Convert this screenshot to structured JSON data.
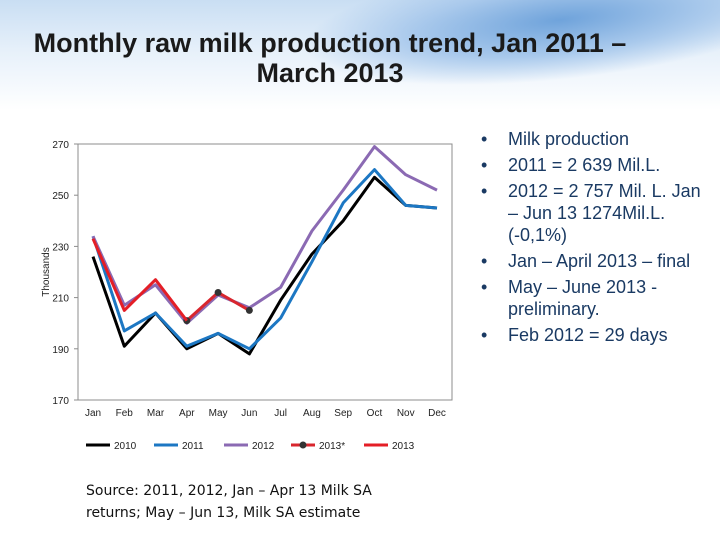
{
  "title": "Monthly raw milk production trend, Jan 2011 – March 2013",
  "bullet_marker": "•",
  "bullets": [
    "Milk production",
    "2011 = 2 639 Mil.L.",
    "2012 = 2  757 Mil. L. Jan – Jun 13 1274Mil.L.   (-0,1%)",
    "Jan – April 2013 – final",
    "May – June  2013  - preliminary.",
    "Feb 2012 = 29 days"
  ],
  "source_note": "Source: 2011, 2012, Jan – Apr 13 Milk SA returns; May – Jun 13, Milk SA estimate",
  "chart_data": {
    "type": "line",
    "ylabel": "Thousands",
    "xlabel": "",
    "ylim": [
      170,
      270
    ],
    "yticks": [
      270,
      250,
      230,
      210,
      190,
      170
    ],
    "categories": [
      "Jan",
      "Feb",
      "Mar",
      "Apr",
      "May",
      "Jun",
      "Jul",
      "Aug",
      "Sep",
      "Oct",
      "Nov",
      "Dec"
    ],
    "series": [
      {
        "name": "2010",
        "color": "#000000",
        "marker": "none",
        "values": [
          226,
          191,
          204,
          190,
          196,
          188,
          209,
          227,
          240,
          257,
          246,
          245
        ]
      },
      {
        "name": "2011",
        "color": "#1c77c3",
        "marker": "none",
        "values": [
          234,
          197,
          204,
          191,
          196,
          190,
          202,
          224,
          247,
          260,
          246,
          245
        ]
      },
      {
        "name": "2012",
        "color": "#8b6ab3",
        "marker": "none",
        "values": [
          234,
          207,
          215,
          200,
          211,
          206,
          214,
          236,
          252,
          269,
          258,
          252
        ]
      },
      {
        "name": "2013*",
        "color": "#d9262e",
        "marker": "dot",
        "values": [
          null,
          null,
          null,
          201,
          212,
          205,
          null,
          null,
          null,
          null,
          null,
          null
        ]
      },
      {
        "name": "2013",
        "color": "#e41e26",
        "marker": "none",
        "values": [
          233,
          205,
          217,
          201,
          null,
          null,
          null,
          null,
          null,
          null,
          null,
          null
        ]
      }
    ]
  }
}
